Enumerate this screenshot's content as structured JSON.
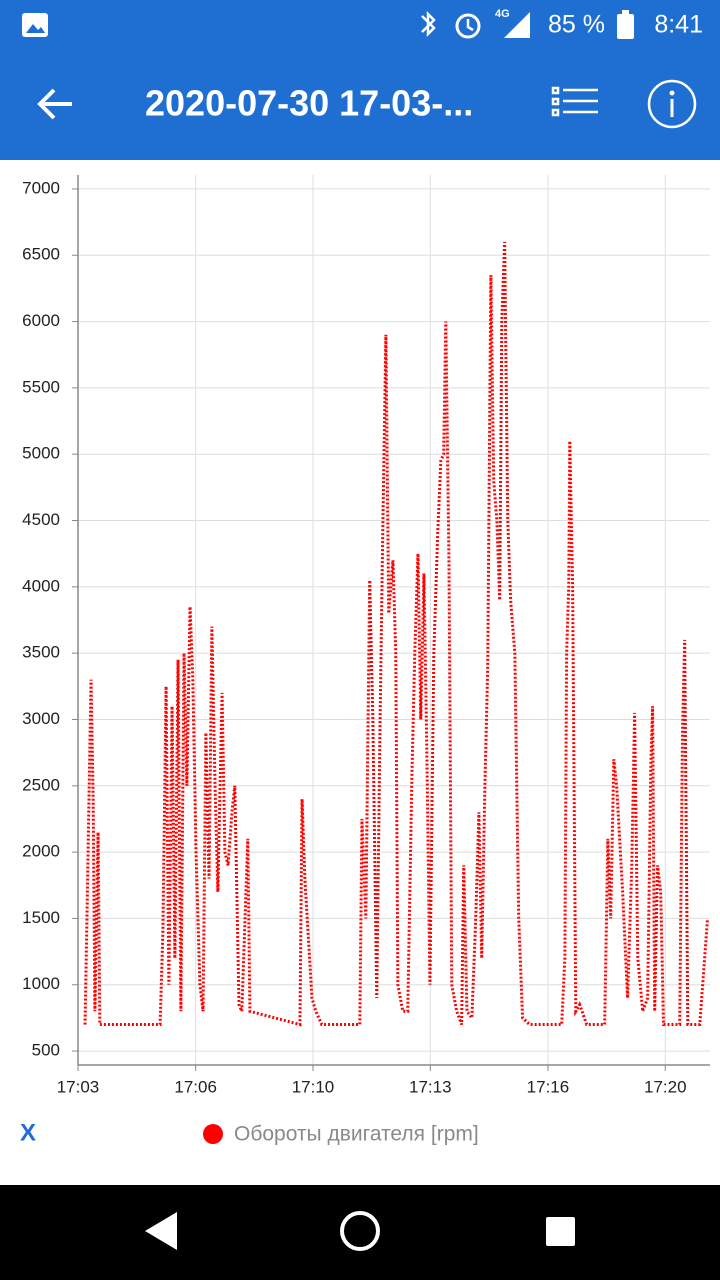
{
  "status_bar": {
    "network": "4G",
    "battery": "85 %",
    "time": "8:41"
  },
  "app_bar": {
    "title": "2020-07-30 17-03-..."
  },
  "footer": {
    "x_button": "X"
  },
  "chart_data": {
    "type": "line",
    "x": [
      1023.53,
      1023.61,
      1023.7,
      1023.76,
      1023.81,
      1023.9,
      1023.95,
      1024.1,
      1024.81,
      1025.66,
      1025.74,
      1025.83,
      1025.91,
      1026.0,
      1026.08,
      1026.17,
      1026.25,
      1026.34,
      1026.42,
      1026.51,
      1026.59,
      1026.68,
      1026.79,
      1026.88,
      1026.96,
      1027.05,
      1027.13,
      1027.22,
      1027.3,
      1027.42,
      1027.5,
      1027.59,
      1027.7,
      1027.78,
      1027.9,
      1027.98,
      1028.15,
      1028.21,
      1029.63,
      1029.69,
      1029.77,
      1029.97,
      1030.08,
      1030.25,
      1030.9,
      1031.33,
      1031.39,
      1031.5,
      1031.61,
      1031.7,
      1031.81,
      1031.9,
      1031.98,
      1032.07,
      1032.15,
      1032.27,
      1032.35,
      1032.41,
      1032.55,
      1032.69,
      1032.81,
      1032.89,
      1032.98,
      1033.06,
      1033.15,
      1033.23,
      1033.32,
      1033.43,
      1033.54,
      1033.63,
      1033.71,
      1033.77,
      1033.86,
      1033.94,
      1034.08,
      1034.22,
      1034.28,
      1034.37,
      1034.51,
      1034.62,
      1034.71,
      1034.79,
      1034.88,
      1034.96,
      1035.05,
      1035.13,
      1035.22,
      1035.3,
      1035.36,
      1035.44,
      1035.53,
      1035.61,
      1035.73,
      1035.84,
      1035.95,
      1036.15,
      1036.58,
      1037.06,
      1037.15,
      1037.2,
      1037.26,
      1037.29,
      1037.37,
      1037.46,
      1037.57,
      1037.77,
      1038.14,
      1038.28,
      1038.37,
      1038.45,
      1038.54,
      1038.62,
      1038.79,
      1038.93,
      1039.05,
      1039.13,
      1039.22,
      1039.36,
      1039.5,
      1039.59,
      1039.64,
      1039.7,
      1039.78,
      1039.87,
      1039.95,
      1040.18,
      1040.41,
      1040.49,
      1040.55,
      1040.64,
      1040.98,
      1041.2
    ],
    "series": [
      {
        "name": "Обороты двигателя [rpm]",
        "color": "#ff0000",
        "values": [
          700,
          1900,
          3300,
          2400,
          800,
          2150,
          700,
          700,
          700,
          700,
          1400,
          3250,
          1000,
          3100,
          1200,
          3450,
          800,
          3500,
          2500,
          3850,
          3300,
          2000,
          1000,
          800,
          2900,
          1800,
          3700,
          2500,
          1700,
          3200,
          2000,
          1900,
          2300,
          2500,
          850,
          800,
          2100,
          800,
          700,
          2400,
          1800,
          900,
          800,
          700,
          700,
          700,
          2250,
          1500,
          4050,
          3000,
          900,
          2900,
          4400,
          5900,
          3800,
          4200,
          3500,
          1000,
          800,
          800,
          2600,
          3500,
          4250,
          3000,
          4100,
          2800,
          1000,
          3500,
          4400,
          4950,
          5000,
          6000,
          4200,
          1000,
          800,
          700,
          1900,
          800,
          750,
          1500,
          2300,
          1200,
          2500,
          3400,
          6350,
          4800,
          4500,
          3900,
          6000,
          6600,
          4500,
          3900,
          3500,
          1500,
          750,
          700,
          700,
          700,
          1200,
          3500,
          4000,
          5100,
          4000,
          800,
          850,
          700,
          700,
          700,
          2100,
          1500,
          2700,
          2500,
          1700,
          900,
          1900,
          3050,
          1200,
          800,
          900,
          2650,
          3100,
          800,
          1900,
          1700,
          700,
          700,
          700,
          2900,
          3600,
          700,
          700,
          1500
        ]
      }
    ],
    "xlim": [
      1023.33,
      1041.27
    ],
    "xticks": [
      {
        "value": 1023.33,
        "label": "17:03"
      },
      {
        "value": 1026.67,
        "label": "17:06"
      },
      {
        "value": 1030,
        "label": "17:10"
      },
      {
        "value": 1033.33,
        "label": "17:13"
      },
      {
        "value": 1036.67,
        "label": "17:16"
      },
      {
        "value": 1040,
        "label": "17:20"
      }
    ],
    "ylim": [
      395,
      7105
    ],
    "yticks": [
      500,
      1000,
      1500,
      2000,
      2500,
      3000,
      3500,
      4000,
      4500,
      5000,
      5500,
      6000,
      6500,
      7000
    ],
    "grid": true
  }
}
